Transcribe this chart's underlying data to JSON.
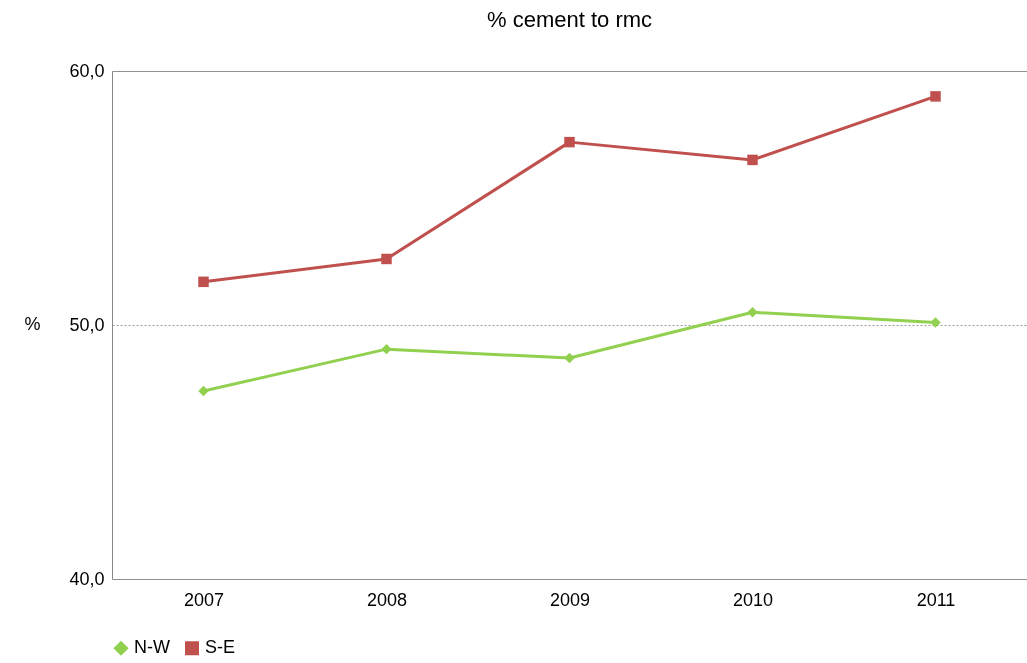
{
  "chart_data": {
    "type": "line",
    "title": "% cement to rmc",
    "ylabel": "%",
    "categories": [
      "2007",
      "2008",
      "2009",
      "2010",
      "2011"
    ],
    "series": [
      {
        "name": "N-W",
        "color": "#92d050",
        "marker": "diamond",
        "values": [
          47.4,
          49.05,
          48.7,
          50.5,
          50.1
        ]
      },
      {
        "name": "S-E",
        "color": "#c0504d",
        "marker": "square",
        "values": [
          51.7,
          52.6,
          57.2,
          56.5,
          59.0
        ]
      }
    ],
    "ylim": [
      40,
      60
    ],
    "yticks": [
      {
        "value": 40,
        "label": "40,0"
      },
      {
        "value": 50,
        "label": "50,0"
      },
      {
        "value": 60,
        "label": "60,0"
      }
    ],
    "grid": "y",
    "legend": "bottom"
  }
}
